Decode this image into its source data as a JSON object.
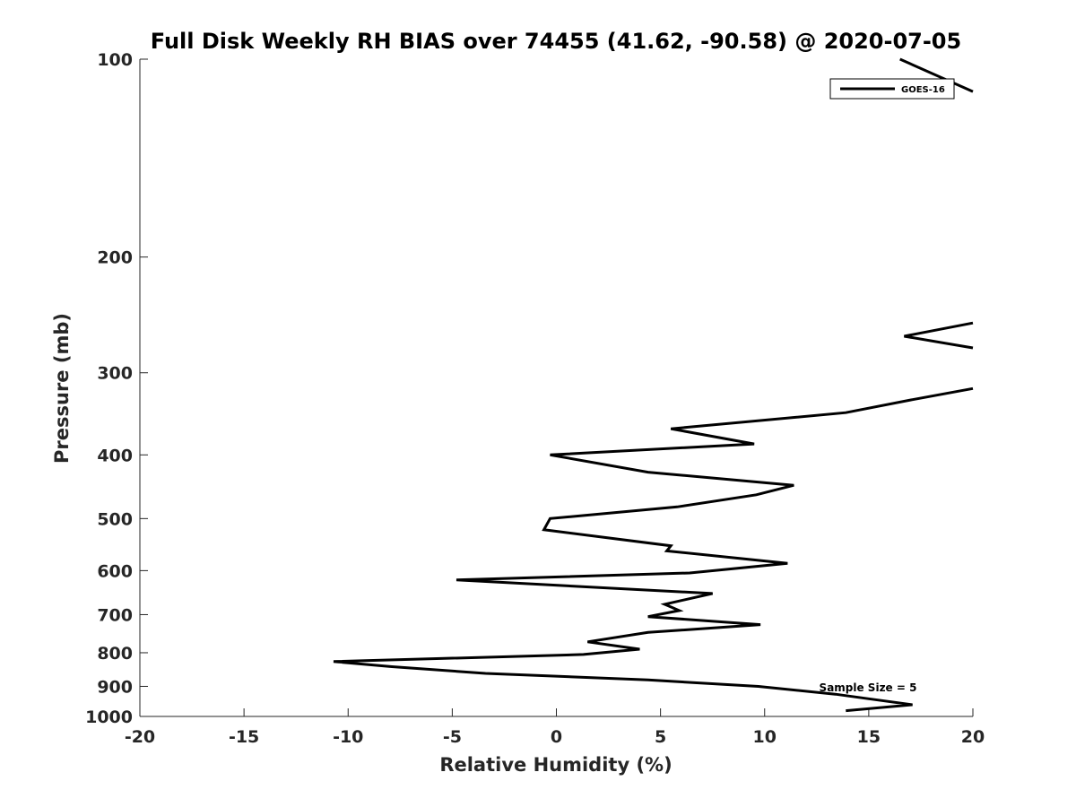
{
  "chart_data": {
    "type": "line",
    "title": "Full Disk Weekly RH BIAS over 74455 (41.62, -90.58) @ 2020-07-05",
    "xlabel": "Relative Humidity (%)",
    "ylabel": "Pressure (mb)",
    "xlim": [
      -20,
      20
    ],
    "ylim": [
      100,
      1000
    ],
    "y_scale": "log",
    "y_reversed": true,
    "grid": false,
    "xticks": [
      -20,
      -15,
      -10,
      -5,
      0,
      5,
      10,
      15,
      20
    ],
    "yticks": [
      100,
      200,
      300,
      400,
      500,
      600,
      700,
      800,
      900,
      1000
    ],
    "legend": {
      "position": "top-right",
      "entries": [
        "GOES-16"
      ]
    },
    "annotation": "Sample Size = 5",
    "series": [
      {
        "name": "GOES-16",
        "color": "#000000",
        "segments": [
          [
            {
              "x": 16.5,
              "y": 100
            },
            {
              "x": 20,
              "y": 112
            }
          ],
          [
            {
              "x": 20,
              "y": 252
            },
            {
              "x": 16.7,
              "y": 264
            },
            {
              "x": 20,
              "y": 275
            }
          ],
          [
            {
              "x": 20,
              "y": 317
            },
            {
              "x": 17,
              "y": 330
            },
            {
              "x": 13.9,
              "y": 345
            },
            {
              "x": 5.5,
              "y": 365
            },
            {
              "x": 9.5,
              "y": 385
            },
            {
              "x": -0.3,
              "y": 400
            },
            {
              "x": 4.4,
              "y": 425
            },
            {
              "x": 11.4,
              "y": 445
            },
            {
              "x": 9.6,
              "y": 460
            },
            {
              "x": 5.8,
              "y": 480
            },
            {
              "x": -0.3,
              "y": 500
            },
            {
              "x": -0.6,
              "y": 520
            },
            {
              "x": 5.5,
              "y": 550
            },
            {
              "x": 5.3,
              "y": 560
            },
            {
              "x": 11.1,
              "y": 585
            },
            {
              "x": 6.4,
              "y": 605
            },
            {
              "x": -4.8,
              "y": 620
            },
            {
              "x": 7.5,
              "y": 650
            },
            {
              "x": 5.2,
              "y": 675
            },
            {
              "x": 5.9,
              "y": 690
            },
            {
              "x": 4.4,
              "y": 705
            },
            {
              "x": 9.8,
              "y": 725
            },
            {
              "x": 4.4,
              "y": 745
            },
            {
              "x": 1.5,
              "y": 770
            },
            {
              "x": 4.0,
              "y": 790
            },
            {
              "x": 1.3,
              "y": 805
            },
            {
              "x": -10.7,
              "y": 825
            },
            {
              "x": -7.9,
              "y": 840
            },
            {
              "x": -3.4,
              "y": 860
            },
            {
              "x": 4.4,
              "y": 880
            },
            {
              "x": 9.7,
              "y": 900
            },
            {
              "x": 13.4,
              "y": 925
            },
            {
              "x": 15.0,
              "y": 940
            },
            {
              "x": 17.1,
              "y": 960
            },
            {
              "x": 13.9,
              "y": 980
            }
          ]
        ]
      }
    ]
  }
}
